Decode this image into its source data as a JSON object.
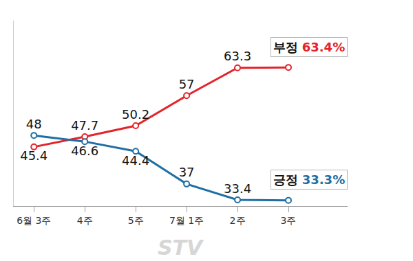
{
  "chart_data": {
    "type": "line",
    "categories": [
      "6월 3주",
      "4주",
      "5주",
      "7월 1주",
      "2주",
      "3주"
    ],
    "series": [
      {
        "name": "부정",
        "color": "#e3242b",
        "values": [
          45.4,
          47.7,
          50.2,
          57,
          63.3,
          63.4
        ],
        "value_labels": [
          "45.4",
          "47.7",
          "50.2",
          "57",
          "63.3",
          "63.4%"
        ]
      },
      {
        "name": "긍정",
        "color": "#1f6fa3",
        "values": [
          48,
          46.6,
          44.4,
          37,
          33.4,
          33.3
        ],
        "value_labels": [
          "48",
          "46.6",
          "44.4",
          "37",
          "33.4",
          "33.3%"
        ]
      }
    ],
    "ylim": [
      32,
      74
    ],
    "tick_labels": "x",
    "data_labels": true,
    "grid": false,
    "marker": "circle",
    "annotations": [
      "STV"
    ]
  }
}
